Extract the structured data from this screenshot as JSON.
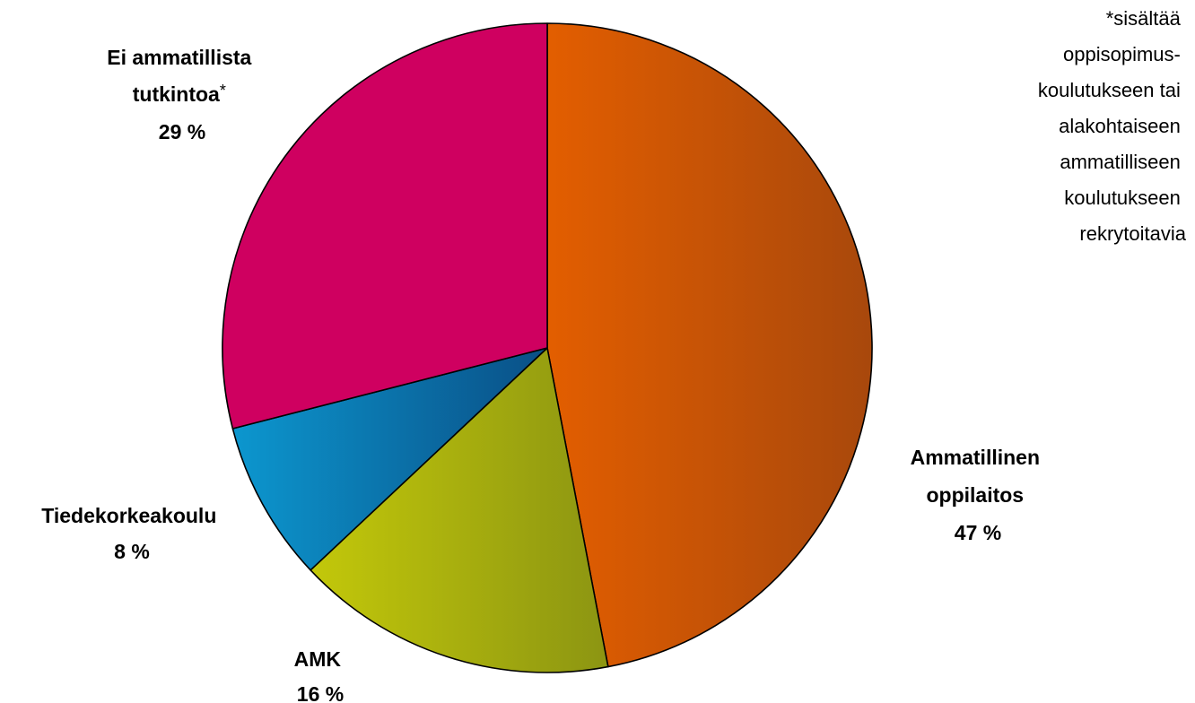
{
  "chart_data": {
    "type": "pie",
    "slices": [
      {
        "label_lines": [
          "Ammatillinen",
          "oppilaitos"
        ],
        "value": 47,
        "value_label": "47 %",
        "color_light": "#e35e00",
        "color_dark": "#a8480c"
      },
      {
        "label_lines": [
          "AMK"
        ],
        "value": 16,
        "value_label": "16 %",
        "color_light": "#c3c80a",
        "color_dark": "#8c9512"
      },
      {
        "label_lines": [
          "Tiedekorkeakoulu"
        ],
        "value": 8,
        "value_label": "8 %",
        "color_light": "#0c97cf",
        "color_dark": "#0a4f86"
      },
      {
        "label_lines": [
          "Ei ammatillista",
          "tutkintoa"
        ],
        "label_suffix": "*",
        "value": 29,
        "value_label": "29 %",
        "color_light": "#cf0060",
        "color_dark": "#cf0060"
      }
    ],
    "footnote": [
      "*sisältää",
      "oppisopimus-",
      "koulutukseen tai",
      "alakohtaiseen",
      "ammatilliseen",
      "koulutukseen",
      "rekrytoitavia"
    ]
  }
}
